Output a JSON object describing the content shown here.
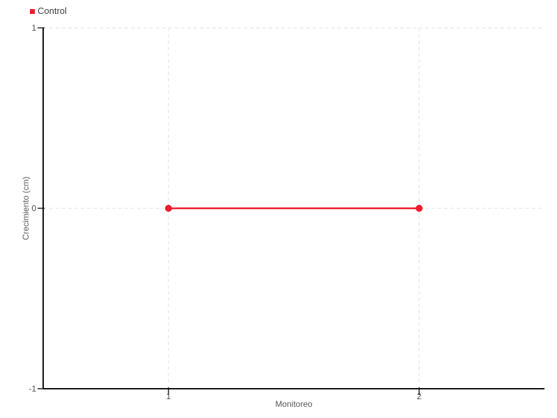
{
  "chart_data": {
    "type": "line",
    "title": "",
    "xlabel": "Monitoreo",
    "ylabel": "Crecimiento (cm)",
    "categories": [
      "1",
      "2"
    ],
    "series": [
      {
        "name": "Control",
        "values": [
          0,
          0
        ],
        "color": "#ed1c2e"
      }
    ],
    "ylim": [
      -1,
      1
    ],
    "yticks": [
      1,
      0,
      -1
    ],
    "grid": true,
    "grid_style": "dashed",
    "legend_position": "top-left",
    "marker": "circle",
    "background": "#ffffff"
  }
}
